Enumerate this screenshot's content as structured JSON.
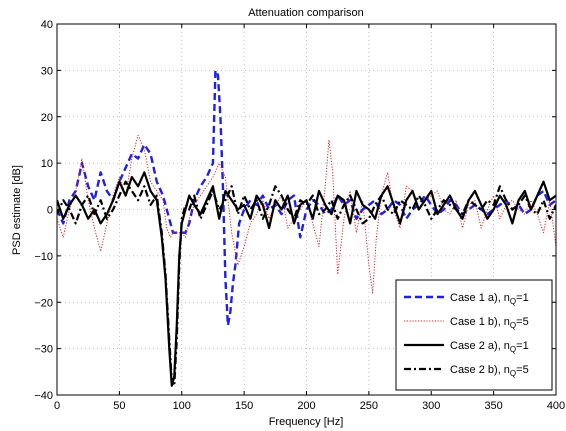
{
  "chart_data": {
    "type": "line",
    "title": "Attenuation comparison",
    "xlabel": "Frequency [Hz]",
    "ylabel": "PSD estimate [dB]",
    "xlim": [
      0,
      400
    ],
    "ylim": [
      -40,
      40
    ],
    "xticks": [
      0,
      50,
      100,
      150,
      200,
      250,
      300,
      350,
      400
    ],
    "yticks": [
      -40,
      -30,
      -20,
      -10,
      0,
      10,
      20,
      30,
      40
    ],
    "xtick_labels": [
      "0",
      "50",
      "100",
      "150",
      "200",
      "250",
      "300",
      "350",
      "400"
    ],
    "ytick_labels": [
      "−40",
      "−30",
      "−20",
      "−10",
      "0",
      "10",
      "20",
      "30",
      "40"
    ],
    "grid": true,
    "legend_position": "bottom-right",
    "series": [
      {
        "legend_prefix": "Case 1 a), n",
        "legend_sub": "Q",
        "legend_suffix": "=1",
        "color": "#1f1fe6",
        "style": "dashed",
        "x": [
          0,
          5,
          10,
          15,
          20,
          25,
          30,
          35,
          40,
          45,
          50,
          55,
          60,
          65,
          70,
          75,
          80,
          85,
          88,
          91,
          93,
          96,
          100,
          103,
          106,
          110,
          115,
          120,
          125,
          127,
          129,
          131,
          133,
          135,
          137,
          139,
          141,
          143,
          146,
          150,
          155,
          160,
          165,
          170,
          175,
          180,
          185,
          190,
          195,
          200,
          205,
          210,
          215,
          220,
          225,
          230,
          235,
          240,
          245,
          250,
          255,
          260,
          265,
          270,
          275,
          280,
          285,
          290,
          295,
          300,
          305,
          310,
          315,
          320,
          325,
          330,
          335,
          340,
          345,
          350,
          355,
          360,
          365,
          370,
          375,
          380,
          385,
          390,
          395,
          400
        ],
        "values": [
          0,
          -3,
          2,
          4,
          10,
          5,
          2,
          8,
          4,
          2,
          6,
          9,
          12,
          11,
          14,
          12,
          6,
          3,
          0,
          -3,
          -5,
          -5,
          -5,
          -5,
          -3,
          2,
          5,
          7,
          10,
          30,
          29,
          20,
          5,
          -15,
          -25,
          -22,
          -16,
          -12,
          -3,
          0,
          2,
          1,
          3,
          0,
          1,
          -1,
          2,
          3,
          -6,
          0,
          2,
          1,
          -1,
          0,
          3,
          1,
          2,
          -2,
          0,
          1,
          2,
          -1,
          0,
          2,
          1,
          -2,
          0,
          1,
          3,
          1,
          -1,
          0,
          2,
          1,
          -1,
          0,
          1,
          0,
          -1,
          0,
          1,
          2,
          0,
          1,
          -1,
          0,
          3,
          4,
          1,
          2
        ]
      },
      {
        "legend_prefix": "Case 1 b), n",
        "legend_sub": "Q",
        "legend_suffix": "=5",
        "color": "#e61f1f",
        "style": "dotted",
        "x": [
          0,
          5,
          10,
          15,
          20,
          25,
          30,
          35,
          40,
          45,
          50,
          55,
          60,
          65,
          70,
          75,
          80,
          85,
          88,
          91,
          93,
          96,
          100,
          103,
          106,
          110,
          115,
          120,
          125,
          130,
          135,
          140,
          145,
          150,
          155,
          160,
          165,
          170,
          175,
          180,
          185,
          190,
          195,
          200,
          205,
          210,
          215,
          218,
          221,
          225,
          230,
          235,
          240,
          245,
          250,
          253,
          256,
          260,
          265,
          270,
          275,
          280,
          285,
          290,
          295,
          300,
          305,
          310,
          315,
          320,
          325,
          330,
          335,
          340,
          345,
          350,
          355,
          360,
          365,
          370,
          375,
          380,
          385,
          390,
          395,
          400
        ],
        "values": [
          -2,
          -6,
          0,
          4,
          11,
          2,
          -4,
          -9,
          -3,
          3,
          7,
          3,
          11,
          16,
          13,
          6,
          4,
          2,
          -4,
          -6,
          -5,
          -5,
          -5,
          -6,
          -2,
          1,
          3,
          5,
          7,
          10,
          7,
          -5,
          -12,
          -8,
          -3,
          -1,
          2,
          -2,
          1,
          3,
          -4,
          -2,
          0,
          2,
          -3,
          -8,
          5,
          15,
          8,
          -14,
          -2,
          4,
          -5,
          2,
          -12,
          -18,
          -6,
          3,
          8,
          0,
          -4,
          5,
          4,
          0,
          2,
          3,
          4,
          0,
          -1,
          2,
          -4,
          1,
          2,
          -4,
          0,
          3,
          -2,
          1,
          2,
          0,
          -1,
          2,
          -1,
          -5,
          2,
          -8
        ]
      },
      {
        "legend_prefix": "Case 2 a), n",
        "legend_sub": "Q",
        "legend_suffix": "=1",
        "color": "#000000",
        "style": "solid",
        "x": [
          0,
          5,
          10,
          15,
          20,
          25,
          30,
          35,
          40,
          45,
          50,
          55,
          60,
          65,
          70,
          75,
          80,
          84,
          87,
          90,
          92,
          94,
          96,
          98,
          100,
          103,
          106,
          110,
          115,
          120,
          125,
          130,
          135,
          140,
          145,
          150,
          155,
          160,
          165,
          170,
          175,
          180,
          185,
          190,
          195,
          200,
          205,
          210,
          215,
          220,
          225,
          230,
          235,
          240,
          245,
          250,
          255,
          260,
          265,
          270,
          275,
          280,
          285,
          290,
          295,
          300,
          305,
          310,
          315,
          320,
          325,
          330,
          335,
          340,
          345,
          350,
          355,
          360,
          365,
          370,
          375,
          380,
          385,
          390,
          395,
          400
        ],
        "values": [
          2,
          -2,
          1,
          3,
          1,
          -2,
          0,
          -3,
          -1,
          2,
          6,
          3,
          7,
          5,
          8,
          4,
          2,
          -6,
          -15,
          -30,
          -38,
          -36,
          -25,
          -10,
          -3,
          0,
          3,
          1,
          -1,
          2,
          5,
          -2,
          4,
          2,
          0,
          1,
          -2,
          3,
          1,
          -4,
          2,
          0,
          3,
          -3,
          1,
          2,
          -2,
          4,
          1,
          -1,
          3,
          2,
          -3,
          4,
          1,
          0,
          -2,
          3,
          5,
          1,
          -3,
          2,
          4,
          0,
          2,
          4,
          -1,
          1,
          3,
          0,
          -2,
          2,
          4,
          1,
          -2,
          0,
          3,
          1,
          -3,
          2,
          4,
          0,
          3,
          6,
          2,
          3
        ]
      },
      {
        "legend_prefix": "Case 2 b), n",
        "legend_sub": "Q",
        "legend_suffix": "=5",
        "color": "#000000",
        "style": "dashdot",
        "x": [
          0,
          5,
          10,
          15,
          20,
          25,
          30,
          35,
          40,
          45,
          50,
          55,
          60,
          65,
          70,
          75,
          80,
          84,
          87,
          90,
          92,
          94,
          96,
          98,
          100,
          103,
          106,
          110,
          115,
          120,
          125,
          130,
          135,
          140,
          145,
          150,
          155,
          160,
          165,
          170,
          175,
          180,
          185,
          190,
          195,
          200,
          205,
          210,
          215,
          220,
          225,
          230,
          235,
          240,
          245,
          250,
          255,
          260,
          265,
          270,
          275,
          280,
          285,
          290,
          295,
          300,
          305,
          310,
          315,
          320,
          325,
          330,
          335,
          340,
          345,
          350,
          355,
          360,
          365,
          370,
          375,
          380,
          385,
          390,
          395,
          400
        ],
        "values": [
          -1,
          2,
          0,
          -3,
          1,
          3,
          -1,
          2,
          -2,
          0,
          3,
          6,
          4,
          2,
          5,
          1,
          3,
          -5,
          -14,
          -28,
          -37,
          -38,
          -28,
          -12,
          -2,
          1,
          0,
          3,
          -2,
          1,
          4,
          0,
          2,
          5,
          -1,
          3,
          0,
          2,
          -2,
          1,
          5,
          3,
          0,
          -2,
          2,
          1,
          3,
          -1,
          0,
          2,
          -2,
          1,
          3,
          0,
          -3,
          -2,
          1,
          3,
          0,
          -1,
          2,
          1,
          0,
          3,
          1,
          -2,
          0,
          2,
          1,
          0,
          -1,
          2,
          1,
          0,
          2,
          1,
          5,
          2,
          0,
          1,
          3,
          0,
          -1,
          2,
          -2,
          1
        ]
      }
    ]
  }
}
